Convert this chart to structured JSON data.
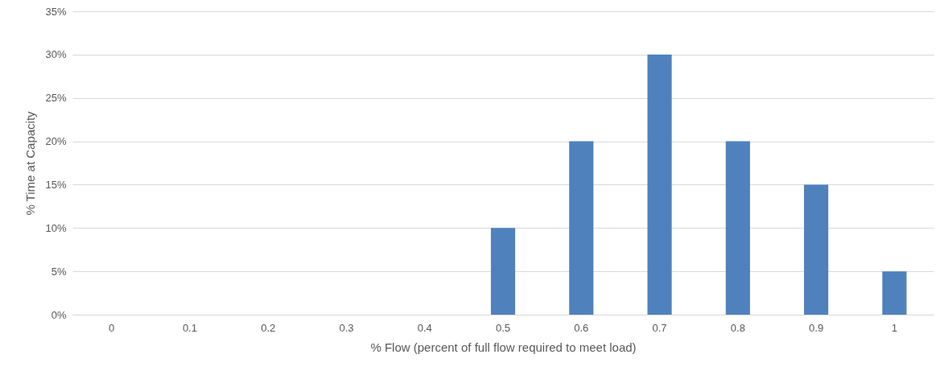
{
  "chart_data": {
    "type": "bar",
    "xlabel": "% Flow (percent of full flow required to meet load)",
    "ylabel": "% Time at Capacity",
    "categories": [
      "0",
      "0.1",
      "0.2",
      "0.3",
      "0.4",
      "0.5",
      "0.6",
      "0.7",
      "0.8",
      "0.9",
      "1"
    ],
    "values": [
      0,
      0,
      0,
      0,
      0,
      10,
      20,
      30,
      20,
      15,
      5
    ],
    "color": "#4f81bd",
    "ylim": [
      0,
      35
    ],
    "yticks": [
      {
        "value": 0,
        "label": "0%"
      },
      {
        "value": 5,
        "label": "5%"
      },
      {
        "value": 10,
        "label": "10%"
      },
      {
        "value": 15,
        "label": "15%"
      },
      {
        "value": 20,
        "label": "20%"
      },
      {
        "value": 25,
        "label": "25%"
      },
      {
        "value": 30,
        "label": "30%"
      },
      {
        "value": 35,
        "label": "35%"
      }
    ],
    "grid": "y"
  }
}
